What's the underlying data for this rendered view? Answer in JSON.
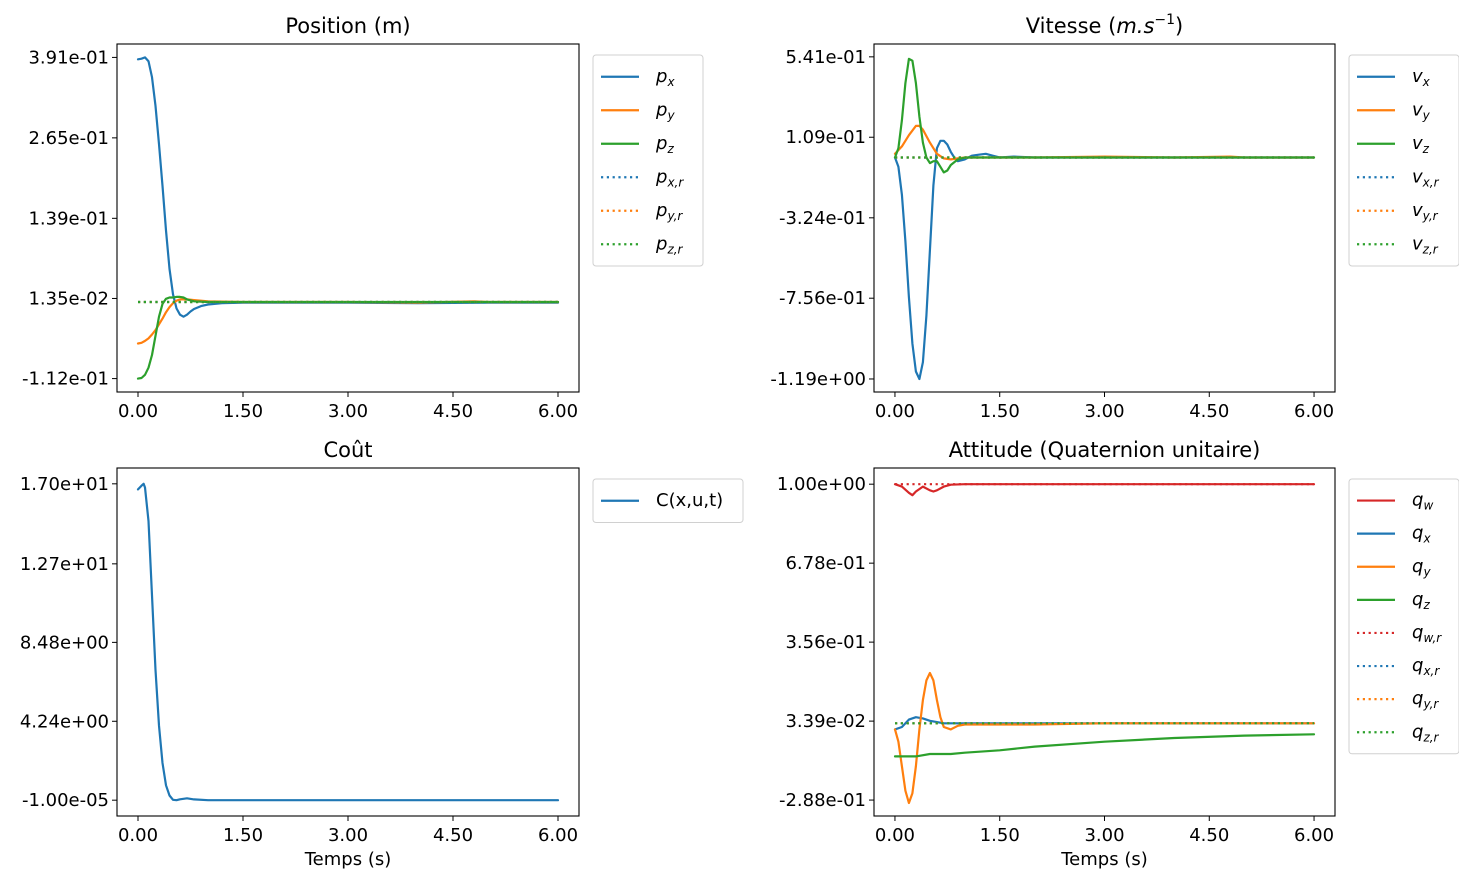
{
  "chart_data": [
    {
      "type": "line",
      "title": "Position (m)",
      "xlabel": "",
      "xlim": [
        -0.3,
        6.3
      ],
      "ylim": [
        -0.133,
        0.412
      ],
      "xticks": [
        0,
        1.5,
        3,
        4.5,
        6
      ],
      "xtick_labels": [
        "0.00",
        "1.50",
        "3.00",
        "4.50",
        "6.00"
      ],
      "yticks": [
        -0.112,
        0.0135,
        0.139,
        0.265,
        0.391
      ],
      "ytick_labels": [
        "-1.12e-01",
        "1.35e-02",
        "1.39e-01",
        "2.65e-01",
        "3.91e-01"
      ],
      "legend_position": "outside-right",
      "series": [
        {
          "name": "p_x",
          "color": "#1f77b4",
          "dash": false,
          "x": [
            0,
            0.05,
            0.1,
            0.15,
            0.2,
            0.25,
            0.3,
            0.35,
            0.4,
            0.45,
            0.5,
            0.55,
            0.6,
            0.65,
            0.7,
            0.75,
            0.8,
            0.9,
            1.0,
            1.2,
            1.5,
            2,
            3,
            4,
            5,
            6
          ],
          "y": [
            0.388,
            0.389,
            0.391,
            0.385,
            0.36,
            0.315,
            0.255,
            0.19,
            0.12,
            0.06,
            0.02,
            -0.002,
            -0.012,
            -0.015,
            -0.012,
            -0.007,
            -0.003,
            0.0015,
            0.004,
            0.006,
            0.007,
            0.007,
            0.007,
            0.006,
            0.007,
            0.007
          ]
        },
        {
          "name": "p_y",
          "color": "#ff7f0e",
          "dash": false,
          "x": [
            0,
            0.05,
            0.1,
            0.15,
            0.2,
            0.25,
            0.3,
            0.35,
            0.4,
            0.45,
            0.5,
            0.55,
            0.6,
            0.7,
            0.8,
            1.0,
            1.5,
            2,
            3,
            4,
            4.8,
            5,
            6
          ],
          "y": [
            -0.057,
            -0.056,
            -0.053,
            -0.049,
            -0.043,
            -0.036,
            -0.027,
            -0.018,
            -0.008,
            0.0,
            0.006,
            0.01,
            0.012,
            0.012,
            0.011,
            0.009,
            0.008,
            0.008,
            0.008,
            0.007,
            0.009,
            0.008,
            0.008
          ]
        },
        {
          "name": "p_z",
          "color": "#2ca02c",
          "dash": false,
          "x": [
            0,
            0.05,
            0.1,
            0.15,
            0.2,
            0.25,
            0.3,
            0.35,
            0.4,
            0.45,
            0.5,
            0.55,
            0.6,
            0.65,
            0.7,
            0.8,
            1.0,
            1.5,
            2,
            3,
            4,
            5,
            6
          ],
          "y": [
            -0.112,
            -0.111,
            -0.106,
            -0.095,
            -0.075,
            -0.045,
            -0.015,
            0.005,
            0.013,
            0.015,
            0.015,
            0.016,
            0.016,
            0.015,
            0.012,
            0.009,
            0.008,
            0.008,
            0.008,
            0.008,
            0.008,
            0.008,
            0.008
          ]
        },
        {
          "name": "p_{x,r}",
          "color": "#1f77b4",
          "dash": true,
          "x": [
            0,
            6
          ],
          "y": [
            0.008,
            0.008
          ]
        },
        {
          "name": "p_{y,r}",
          "color": "#ff7f0e",
          "dash": true,
          "x": [
            0,
            6
          ],
          "y": [
            0.008,
            0.008
          ]
        },
        {
          "name": "p_{z,r}",
          "color": "#2ca02c",
          "dash": true,
          "x": [
            0,
            6
          ],
          "y": [
            0.008,
            0.008
          ]
        }
      ]
    },
    {
      "type": "line",
      "title": "Vitesse (m.s⁻¹)",
      "xlabel": "",
      "xlim": [
        -0.3,
        6.3
      ],
      "ylim": [
        -1.26,
        0.61
      ],
      "xticks": [
        0,
        1.5,
        3,
        4.5,
        6
      ],
      "xtick_labels": [
        "0.00",
        "1.50",
        "3.00",
        "4.50",
        "6.00"
      ],
      "yticks": [
        -1.19,
        -0.756,
        -0.324,
        0.109,
        0.541
      ],
      "ytick_labels": [
        "-1.19e+00",
        "-7.56e-01",
        "-3.24e-01",
        "1.09e-01",
        "5.41e-01"
      ],
      "legend_position": "outside-right",
      "series": [
        {
          "name": "v_x",
          "color": "#1f77b4",
          "dash": false,
          "x": [
            0,
            0.05,
            0.1,
            0.15,
            0.2,
            0.25,
            0.3,
            0.35,
            0.4,
            0.45,
            0.5,
            0.55,
            0.6,
            0.65,
            0.7,
            0.75,
            0.8,
            0.85,
            0.9,
            1.0,
            1.1,
            1.2,
            1.3,
            1.4,
            1.5,
            1.7,
            2,
            3,
            4,
            5,
            6
          ],
          "y": [
            0.0,
            -0.05,
            -0.2,
            -0.45,
            -0.75,
            -1.0,
            -1.15,
            -1.19,
            -1.1,
            -0.85,
            -0.5,
            -0.15,
            0.05,
            0.09,
            0.09,
            0.07,
            0.03,
            0.0,
            -0.02,
            -0.01,
            0.01,
            0.015,
            0.02,
            0.01,
            0.0,
            0.005,
            0.0,
            0.0,
            0.0,
            0.0,
            0.0
          ]
        },
        {
          "name": "v_y",
          "color": "#ff7f0e",
          "dash": false,
          "x": [
            0,
            0.1,
            0.2,
            0.3,
            0.35,
            0.4,
            0.5,
            0.6,
            0.7,
            0.8,
            0.9,
            1.0,
            1.5,
            2,
            3,
            4,
            4.8,
            5,
            6
          ],
          "y": [
            0.02,
            0.06,
            0.12,
            0.17,
            0.17,
            0.15,
            0.08,
            0.02,
            -0.005,
            -0.01,
            -0.005,
            0.0,
            0.0,
            0.0,
            0.005,
            0.0,
            0.005,
            0.0,
            0.0
          ]
        },
        {
          "name": "v_z",
          "color": "#2ca02c",
          "dash": false,
          "x": [
            0,
            0.05,
            0.1,
            0.15,
            0.2,
            0.25,
            0.3,
            0.35,
            0.4,
            0.45,
            0.5,
            0.55,
            0.6,
            0.65,
            0.7,
            0.75,
            0.8,
            0.9,
            1.0,
            1.5,
            2,
            3,
            4,
            5,
            6
          ],
          "y": [
            0.0,
            0.05,
            0.2,
            0.4,
            0.53,
            0.52,
            0.4,
            0.22,
            0.08,
            0.0,
            -0.03,
            -0.02,
            -0.02,
            -0.05,
            -0.08,
            -0.07,
            -0.04,
            -0.01,
            0.0,
            0.0,
            0.0,
            0.0,
            0.0,
            0.0,
            0.0
          ]
        },
        {
          "name": "v_{x,r}",
          "color": "#1f77b4",
          "dash": true,
          "x": [
            0,
            6
          ],
          "y": [
            0.0,
            0.0
          ]
        },
        {
          "name": "v_{y,r}",
          "color": "#ff7f0e",
          "dash": true,
          "x": [
            0,
            6
          ],
          "y": [
            0.0,
            0.0
          ]
        },
        {
          "name": "v_{z,r}",
          "color": "#2ca02c",
          "dash": true,
          "x": [
            0,
            6
          ],
          "y": [
            0.0,
            0.0
          ]
        }
      ]
    },
    {
      "type": "line",
      "title": "Coût",
      "xlabel": "Temps (s)",
      "xlim": [
        -0.3,
        6.3
      ],
      "ylim": [
        -0.85,
        17.85
      ],
      "xticks": [
        0,
        1.5,
        3,
        4.5,
        6
      ],
      "xtick_labels": [
        "0.00",
        "1.50",
        "3.00",
        "4.50",
        "6.00"
      ],
      "yticks": [
        -1e-05,
        4.24,
        8.48,
        12.7,
        17.0
      ],
      "ytick_labels": [
        "-1.00e-05",
        "4.24e+00",
        "8.48e+00",
        "1.27e+01",
        "1.70e+01"
      ],
      "legend_position": "outside-right",
      "series": [
        {
          "name": "C(x,u,t)",
          "color": "#1f77b4",
          "dash": false,
          "x": [
            0,
            0.05,
            0.08,
            0.1,
            0.15,
            0.2,
            0.25,
            0.3,
            0.35,
            0.4,
            0.45,
            0.5,
            0.55,
            0.6,
            0.7,
            0.8,
            1.0,
            1.5,
            2,
            3,
            4,
            5,
            6
          ],
          "y": [
            16.7,
            16.9,
            17.0,
            16.8,
            15.0,
            11.0,
            7.0,
            4.0,
            2.0,
            0.8,
            0.25,
            0.02,
            0.0,
            0.05,
            0.1,
            0.04,
            0.0,
            0.0,
            0.0,
            0.0,
            0.0,
            0.0,
            0.0
          ]
        }
      ]
    },
    {
      "type": "line",
      "title": "Attitude (Quaternion unitaire)",
      "xlabel": "Temps (s)",
      "xlim": [
        -0.3,
        6.3
      ],
      "ylim": [
        -0.353,
        1.066
      ],
      "xticks": [
        0,
        1.5,
        3,
        4.5,
        6
      ],
      "xtick_labels": [
        "0.00",
        "1.50",
        "3.00",
        "4.50",
        "6.00"
      ],
      "yticks": [
        -0.288,
        0.0339,
        0.356,
        0.678,
        1.0
      ],
      "ytick_labels": [
        "-2.88e-01",
        "3.39e-02",
        "3.56e-01",
        "6.78e-01",
        "1.00e+00"
      ],
      "legend_position": "outside-right",
      "series": [
        {
          "name": "q_w",
          "color": "#d62728",
          "dash": false,
          "x": [
            0,
            0.1,
            0.2,
            0.25,
            0.3,
            0.4,
            0.5,
            0.55,
            0.6,
            0.7,
            0.8,
            1.0,
            1.5,
            2,
            3,
            4,
            5,
            6
          ],
          "y": [
            1.0,
            0.99,
            0.965,
            0.955,
            0.97,
            0.99,
            0.975,
            0.97,
            0.975,
            0.99,
            0.998,
            1.0,
            1.0,
            1.0,
            1.0,
            1.0,
            1.0,
            1.0
          ]
        },
        {
          "name": "q_x",
          "color": "#1f77b4",
          "dash": false,
          "x": [
            0,
            0.1,
            0.2,
            0.3,
            0.4,
            0.5,
            0.6,
            0.7,
            0.8,
            1.0,
            1.5,
            2,
            3,
            4,
            5,
            6
          ],
          "y": [
            0.0,
            0.01,
            0.04,
            0.05,
            0.045,
            0.035,
            0.03,
            0.025,
            0.025,
            0.025,
            0.025,
            0.025,
            0.025,
            0.025,
            0.025,
            0.025
          ]
        },
        {
          "name": "q_y",
          "color": "#ff7f0e",
          "dash": false,
          "x": [
            0,
            0.05,
            0.1,
            0.15,
            0.2,
            0.25,
            0.3,
            0.35,
            0.4,
            0.45,
            0.5,
            0.55,
            0.6,
            0.65,
            0.7,
            0.8,
            0.9,
            1.0,
            1.2,
            1.5,
            2,
            3,
            4,
            5,
            6
          ],
          "y": [
            0.0,
            -0.05,
            -0.15,
            -0.25,
            -0.3,
            -0.26,
            -0.15,
            0.0,
            0.12,
            0.2,
            0.23,
            0.2,
            0.12,
            0.05,
            0.01,
            0.0,
            0.015,
            0.02,
            0.02,
            0.02,
            0.02,
            0.025,
            0.025,
            0.025,
            0.025
          ]
        },
        {
          "name": "q_z",
          "color": "#2ca02c",
          "dash": false,
          "x": [
            0,
            0.3,
            0.5,
            0.8,
            1.0,
            1.5,
            2,
            3,
            4,
            5,
            6
          ],
          "y": [
            -0.11,
            -0.11,
            -0.1,
            -0.1,
            -0.095,
            -0.085,
            -0.07,
            -0.05,
            -0.035,
            -0.025,
            -0.02
          ]
        },
        {
          "name": "q_{w,r}",
          "color": "#d62728",
          "dash": true,
          "x": [
            0,
            6
          ],
          "y": [
            1.0,
            1.0
          ]
        },
        {
          "name": "q_{x,r}",
          "color": "#1f77b4",
          "dash": true,
          "x": [
            0,
            6
          ],
          "y": [
            0.025,
            0.025
          ]
        },
        {
          "name": "q_{y,r}",
          "color": "#ff7f0e",
          "dash": true,
          "x": [
            0,
            6
          ],
          "y": [
            0.025,
            0.025
          ]
        },
        {
          "name": "q_{z,r}",
          "color": "#2ca02c",
          "dash": true,
          "x": [
            0,
            6
          ],
          "y": [
            0.025,
            0.025
          ]
        }
      ]
    }
  ]
}
